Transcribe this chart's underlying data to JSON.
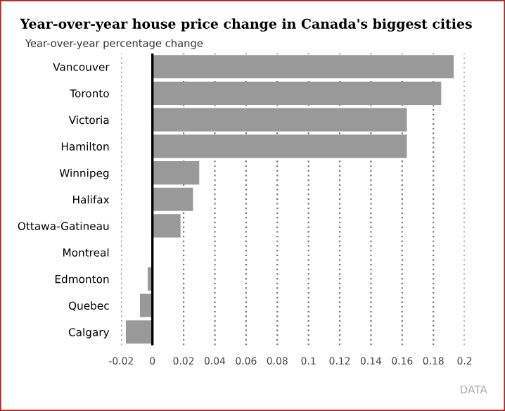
{
  "chart_data": {
    "type": "bar",
    "orientation": "horizontal",
    "title": "Year-over-year house price change in Canada's biggest cities",
    "subtitle": "Year-over-year percentage change",
    "categories": [
      "Vancouver",
      "Toronto",
      "Victoria",
      "Hamilton",
      "Winnipeg",
      "Halifax",
      "Ottawa-Gatineau",
      "Montreal",
      "Edmonton",
      "Quebec",
      "Calgary"
    ],
    "values": [
      0.193,
      0.185,
      0.163,
      0.163,
      0.03,
      0.026,
      0.018,
      0,
      -0.003,
      -0.008,
      -0.017
    ],
    "color": "#999999",
    "xlim": [
      -0.02,
      0.2
    ],
    "xticks": [
      -0.02,
      0,
      0.02,
      0.04,
      0.06,
      0.08,
      0.1,
      0.12,
      0.14,
      0.16,
      0.18,
      0.2
    ],
    "grid": "x",
    "legend": false,
    "annotations": [
      "DATA"
    ]
  }
}
